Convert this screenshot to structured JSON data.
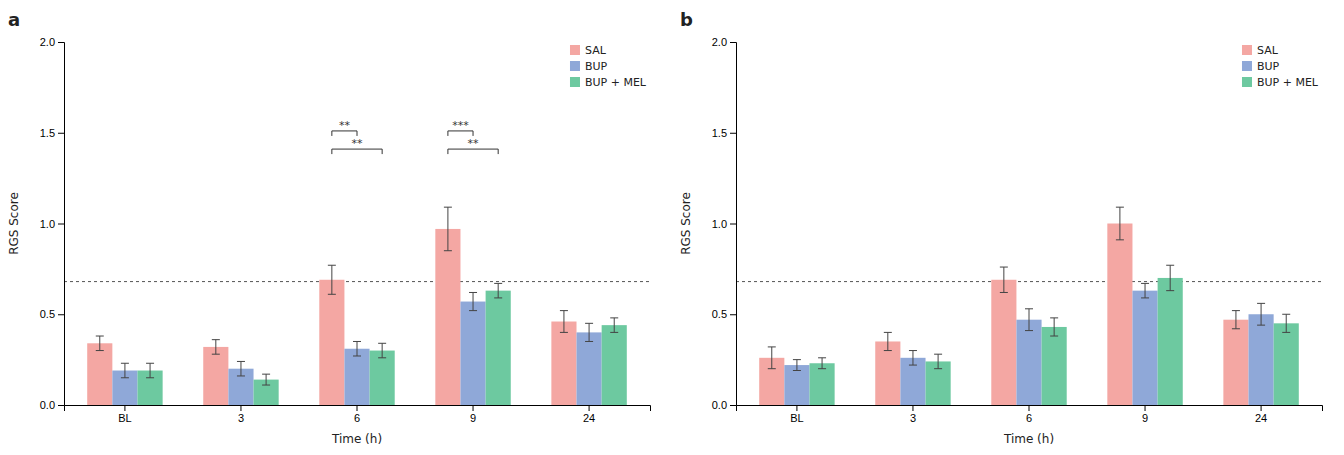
{
  "chart_data": [
    {
      "type": "bar",
      "title": "a",
      "categories": [
        "BL",
        "3",
        "6",
        "9",
        "24"
      ],
      "series": [
        {
          "name": "SAL",
          "color": "#F4A7A3",
          "values": [
            0.34,
            0.32,
            0.69,
            0.97,
            0.46
          ],
          "errors": [
            0.04,
            0.04,
            0.08,
            0.12,
            0.06
          ]
        },
        {
          "name": "BUP",
          "color": "#8FA8D8",
          "values": [
            0.19,
            0.2,
            0.31,
            0.57,
            0.4
          ],
          "errors": [
            0.04,
            0.04,
            0.04,
            0.05,
            0.05
          ]
        },
        {
          "name": "BUP + MEL",
          "color": "#6DC9A0",
          "values": [
            0.19,
            0.14,
            0.3,
            0.63,
            0.44
          ],
          "errors": [
            0.04,
            0.03,
            0.04,
            0.04,
            0.04
          ]
        }
      ],
      "xlabel": "Time (h)",
      "ylabel": "RGS Score",
      "ylim": [
        0.0,
        2.0
      ],
      "yticks": [
        {
          "value": 0.0,
          "label": "0.0"
        },
        0.5,
        {
          "value": 1.0,
          "label": "1.0"
        },
        1.5,
        {
          "value": 2.0,
          "label": "2.0"
        }
      ],
      "reference_line": 0.68,
      "annotations": [
        {
          "text": "**",
          "category": "6",
          "from": "SAL",
          "to": "BUP",
          "y": 1.51
        },
        {
          "text": "**",
          "category": "6",
          "from": "SAL",
          "to": "BUP + MEL",
          "y": 1.41
        },
        {
          "text": "***",
          "category": "9",
          "from": "SAL",
          "to": "BUP",
          "y": 1.51
        },
        {
          "text": "**",
          "category": "9",
          "from": "SAL",
          "to": "BUP + MEL",
          "y": 1.41
        }
      ],
      "legend": "upper right",
      "grid": false
    },
    {
      "type": "bar",
      "title": "b",
      "categories": [
        "BL",
        "3",
        "6",
        "9",
        "24"
      ],
      "series": [
        {
          "name": "SAL",
          "color": "#F4A7A3",
          "values": [
            0.26,
            0.35,
            0.69,
            1.0,
            0.47
          ],
          "errors": [
            0.06,
            0.05,
            0.07,
            0.09,
            0.05
          ]
        },
        {
          "name": "BUP",
          "color": "#8FA8D8",
          "values": [
            0.22,
            0.26,
            0.47,
            0.63,
            0.5
          ],
          "errors": [
            0.03,
            0.04,
            0.06,
            0.04,
            0.06
          ]
        },
        {
          "name": "BUP + MEL",
          "color": "#6DC9A0",
          "values": [
            0.23,
            0.24,
            0.43,
            0.7,
            0.45
          ],
          "errors": [
            0.03,
            0.04,
            0.05,
            0.07,
            0.05
          ]
        }
      ],
      "xlabel": "Time (h)",
      "ylabel": "RGS Score",
      "ylim": [
        0.0,
        2.0
      ],
      "yticks": [
        {
          "value": 0.0,
          "label": "0.0"
        },
        0.5,
        {
          "value": 1.0,
          "label": "1.0"
        },
        1.5,
        {
          "value": 2.0,
          "label": "2.0"
        }
      ],
      "reference_line": 0.68,
      "legend": "upper right",
      "grid": false
    }
  ]
}
